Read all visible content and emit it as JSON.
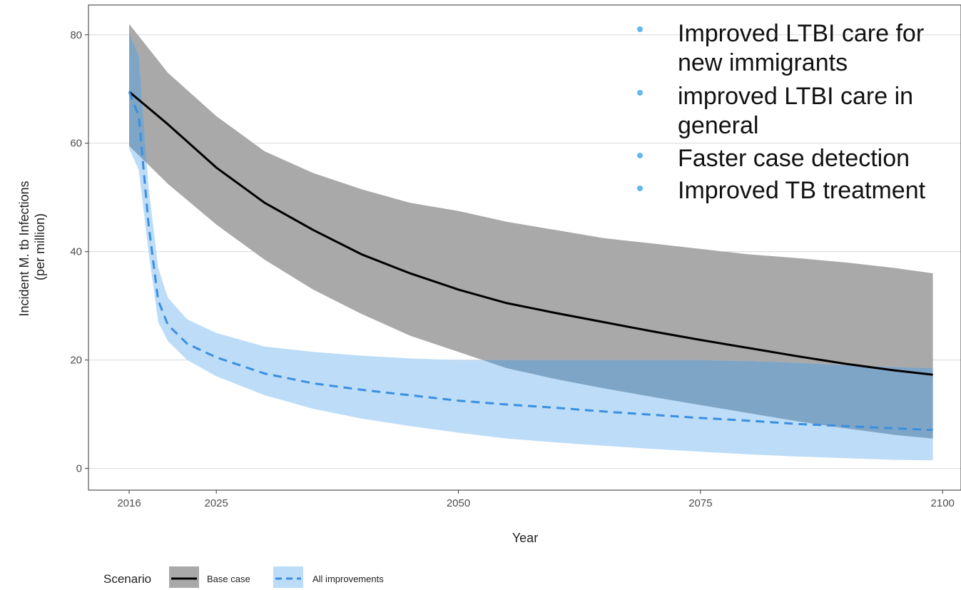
{
  "chart_data": {
    "type": "area",
    "xlabel": "Year",
    "ylabel_lines": [
      "Incident M. tb Infections",
      "(per million)"
    ],
    "xlim": [
      2011.8,
      2101.9
    ],
    "ylim": [
      -4.0,
      85.5
    ],
    "x_ticks": [
      2016,
      2025,
      2050,
      2075,
      2100
    ],
    "y_ticks": [
      0,
      20,
      40,
      60,
      80
    ],
    "grid": true,
    "legend_title": "Scenario",
    "legend_position": "bottom-left",
    "series": [
      {
        "name": "Base case",
        "line_style": "solid",
        "line_color": "#000000",
        "band_color": "#a9a9a9",
        "x": [
          2016,
          2018,
          2020,
          2025,
          2030,
          2035,
          2040,
          2045,
          2050,
          2055,
          2060,
          2065,
          2070,
          2075,
          2080,
          2085,
          2090,
          2095,
          2099
        ],
        "y": [
          69.5,
          66.5,
          63.5,
          55.5,
          49.0,
          44.0,
          39.5,
          36.0,
          33.0,
          30.5,
          28.7,
          27.0,
          25.3,
          23.7,
          22.2,
          20.7,
          19.3,
          18.1,
          17.3
        ],
        "lower": [
          59.5,
          56.0,
          52.5,
          45.0,
          38.5,
          33.0,
          28.5,
          24.5,
          21.5,
          18.5,
          16.5,
          14.8,
          13.2,
          11.7,
          10.2,
          8.7,
          7.4,
          6.2,
          5.5
        ],
        "upper": [
          82.0,
          77.5,
          73.0,
          65.0,
          58.5,
          54.5,
          51.5,
          49.0,
          47.5,
          45.5,
          44.0,
          42.5,
          41.5,
          40.5,
          39.5,
          38.8,
          38.0,
          37.0,
          36.0
        ]
      },
      {
        "name": "All improvements",
        "line_style": "dashed",
        "line_color": "#3a8fe0",
        "band_color": "#bcdcf8",
        "x": [
          2016,
          2017,
          2018,
          2019,
          2020,
          2022,
          2025,
          2030,
          2035,
          2040,
          2045,
          2050,
          2055,
          2060,
          2065,
          2070,
          2075,
          2080,
          2085,
          2090,
          2095,
          2099
        ],
        "y": [
          69.5,
          65.0,
          45.0,
          31.0,
          26.5,
          23.0,
          20.5,
          17.5,
          15.7,
          14.5,
          13.5,
          12.5,
          11.8,
          11.2,
          10.5,
          9.9,
          9.3,
          8.8,
          8.2,
          7.8,
          7.4,
          7.1
        ],
        "lower": [
          59.0,
          55.0,
          40.0,
          27.0,
          23.5,
          20.0,
          17.0,
          13.5,
          11.0,
          9.2,
          7.8,
          6.6,
          5.5,
          4.8,
          4.2,
          3.6,
          3.1,
          2.6,
          2.2,
          1.9,
          1.6,
          1.5
        ],
        "upper": [
          80.5,
          76.0,
          52.0,
          37.0,
          31.5,
          27.5,
          25.0,
          22.5,
          21.5,
          20.8,
          20.3,
          20.0,
          20.0,
          20.0,
          20.0,
          20.0,
          20.0,
          19.8,
          19.5,
          19.0,
          18.7,
          18.5
        ]
      }
    ]
  },
  "annotation": {
    "bullet_color": "#63b6ee",
    "bullets": [
      [
        "Improved LTBI care for",
        "new immigrants"
      ],
      [
        "improved LTBI care in",
        "general"
      ],
      [
        "Faster case detection"
      ],
      [
        "Improved TB treatment"
      ]
    ]
  },
  "colors": {
    "panel_border": "#333333",
    "grid": "#d9d9d9",
    "overlap_band": "#7ea5c6"
  }
}
